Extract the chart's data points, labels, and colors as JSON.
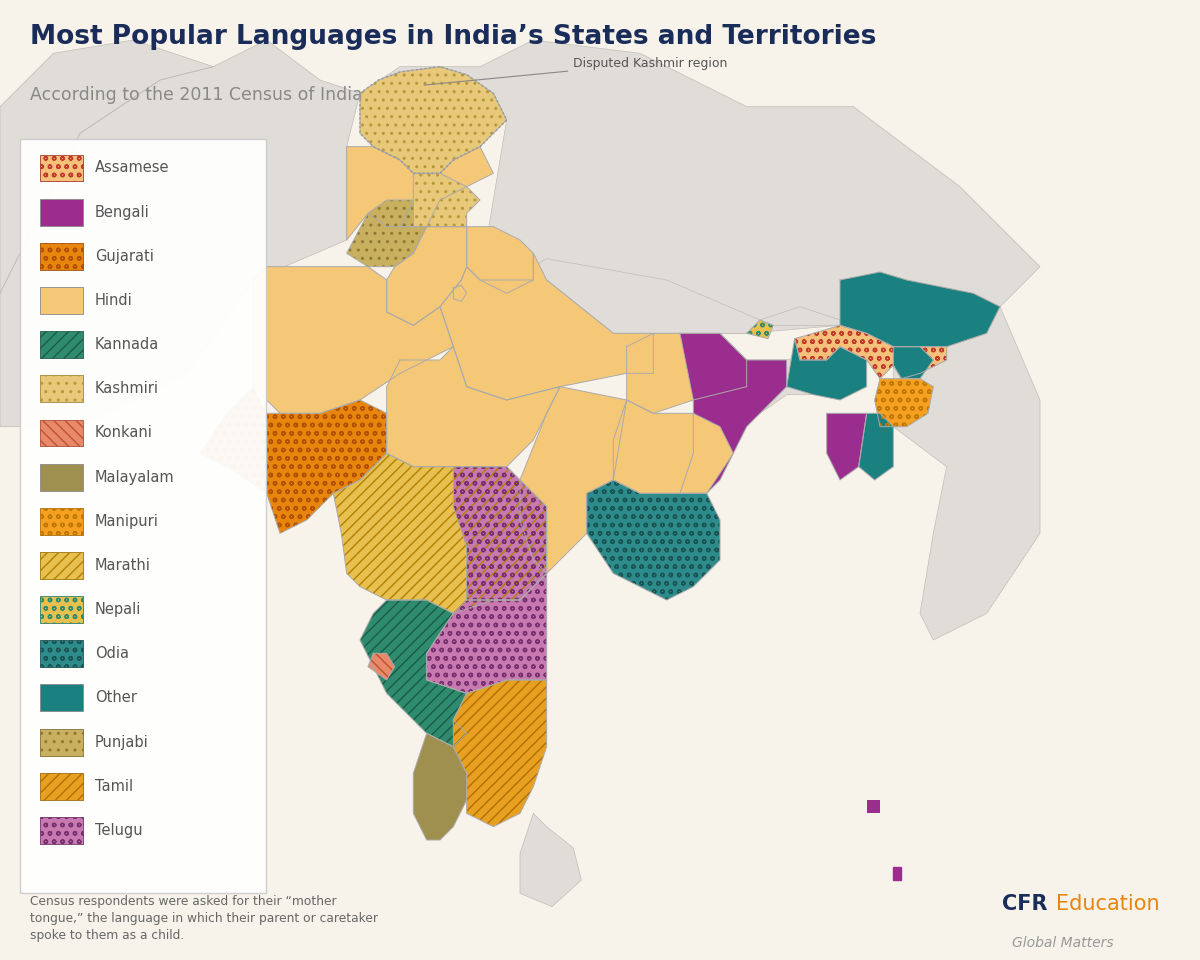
{
  "title": "Most Popular Languages in India’s States and Territories",
  "subtitle": "According to the 2011 Census of India",
  "footnote": "Census respondents were asked for their “mother\ntongue,” the language in which their parent or caretaker\nspoke to them as a child.",
  "background_color": "#f7f3ea",
  "ocean_color": "#e8eef2",
  "neighbor_color": "#e0ddd8",
  "border_color": "#aaaaaa",
  "disputed_label": "Disputed Kashmir region",
  "lang_colors": {
    "Assamese": "#f5c07a",
    "Bengali": "#9b2d8e",
    "Gujarati": "#e8850c",
    "Hindi": "#f5c878",
    "Kannada": "#2e8b6e",
    "Kashmiri": "#e8c97a",
    "Konkani": "#e8896a",
    "Malayalam": "#a09050",
    "Manipuri": "#f5a020",
    "Marathi": "#e8c050",
    "Nepali": "#e8c050",
    "Odia": "#2e8b8b",
    "Other": "#1a8080",
    "Punjabi": "#c8b060",
    "Tamil": "#e8a020",
    "Telugu": "#c87ab0"
  },
  "lang_hatch": {
    "Assamese": {
      "hatch": "oo",
      "ec": "#c0392b"
    },
    "Bengali": {
      "hatch": "",
      "ec": "#9b2d8e"
    },
    "Gujarati": {
      "hatch": "oo",
      "ec": "#b05000"
    },
    "Hindi": {
      "hatch": "",
      "ec": "#f5c878"
    },
    "Kannada": {
      "hatch": "///",
      "ec": "#1a5a46"
    },
    "Kashmiri": {
      "hatch": "..",
      "ec": "#b8963a"
    },
    "Konkani": {
      "hatch": "\\\\\\",
      "ec": "#c05030"
    },
    "Malayalam": {
      "hatch": "",
      "ec": "#a09050"
    },
    "Manipuri": {
      "hatch": "oo",
      "ec": "#c07800"
    },
    "Marathi": {
      "hatch": "///",
      "ec": "#b08000"
    },
    "Nepali": {
      "hatch": "oo",
      "ec": "#2e8b6e"
    },
    "Odia": {
      "hatch": "oo",
      "ec": "#1a5555"
    },
    "Other": {
      "hatch": "",
      "ec": "#1a8080"
    },
    "Punjabi": {
      "hatch": "..",
      "ec": "#907830"
    },
    "Tamil": {
      "hatch": "///",
      "ec": "#b07000"
    },
    "Telugu": {
      "hatch": "oo",
      "ec": "#7a3070"
    }
  },
  "legend_order": [
    "Assamese",
    "Bengali",
    "Gujarati",
    "Hindi",
    "Kannada",
    "Kashmiri",
    "Konkani",
    "Malayalam",
    "Manipuri",
    "Marathi",
    "Nepali",
    "Odia",
    "Other",
    "Punjabi",
    "Tamil",
    "Telugu"
  ],
  "state_languages": {
    "Disputed_Kashmir": "Kashmiri",
    "JK_South": "Hindi",
    "Himachal_Pradesh": "Hindi",
    "Punjab": "Punjabi",
    "Uttarakhand": "Hindi",
    "Haryana": "Hindi",
    "Delhi": "Hindi",
    "Rajasthan": "Hindi",
    "Uttar_Pradesh": "Hindi",
    "Bihar": "Hindi",
    "Sikkim": "Nepali",
    "Arunachal_Pradesh": "Other",
    "Nagaland": "Other",
    "Manipur": "Manipuri",
    "Mizoram": "Other",
    "Tripura": "Bengali",
    "Meghalaya": "Other",
    "Assam": "Assamese",
    "West_Bengal": "Bengali",
    "Jharkhand": "Hindi",
    "Odisha": "Odia",
    "Chhattisgarh": "Hindi",
    "Madhya_Pradesh": "Hindi",
    "Gujarat": "Gujarati",
    "Maharashtra": "Marathi",
    "Andhra_Pradesh": "Telugu",
    "Telangana": "Telugu",
    "Karnataka": "Kannada",
    "Goa": "Konkani",
    "Kerala": "Malayalam",
    "Tamil_Nadu": "Tamil"
  }
}
